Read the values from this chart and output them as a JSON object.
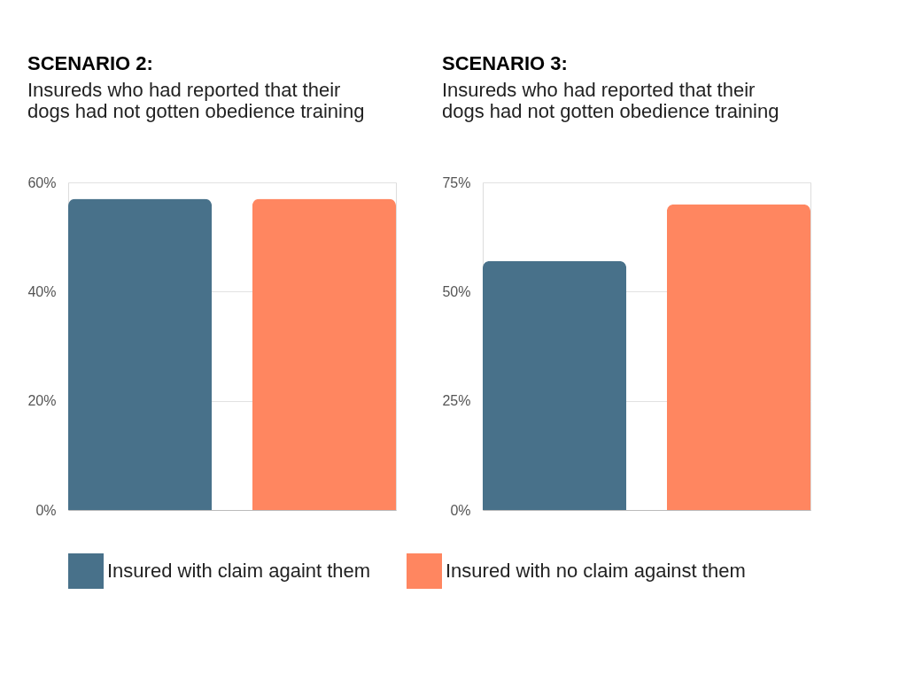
{
  "chart_data": [
    {
      "type": "bar",
      "title": "SCENARIO 2:",
      "subtitle": "Insureds who had reported that  their dogs had not gotten obedience training",
      "categories": [
        null
      ],
      "series": [
        {
          "name": "Insured with claim againt them",
          "color": "#48718a",
          "values": [
            57
          ]
        },
        {
          "name": "Insured with no claim against them",
          "color": "#ff8660",
          "values": [
            57
          ]
        }
      ],
      "ylim": [
        0,
        60
      ],
      "yticks": [
        {
          "value": 0,
          "label": "0%"
        },
        {
          "value": 20,
          "label": "20%"
        },
        {
          "value": 40,
          "label": "40%"
        },
        {
          "value": 60,
          "label": "60%"
        }
      ],
      "grid": "y",
      "legend": "bottom"
    },
    {
      "type": "bar",
      "title": "SCENARIO 3:",
      "subtitle": " Insureds who had reported that  their dogs had not gotten obedience training",
      "categories": [
        null
      ],
      "series": [
        {
          "name": "Insured with claim againt them",
          "color": "#48718a",
          "values": [
            57
          ]
        },
        {
          "name": "Insured with no claim against them",
          "color": "#ff8660",
          "values": [
            70
          ]
        }
      ],
      "ylim": [
        0,
        75
      ],
      "yticks": [
        {
          "value": 0,
          "label": "0%"
        },
        {
          "value": 25,
          "label": "25%"
        },
        {
          "value": 50,
          "label": "50%"
        },
        {
          "value": 75,
          "label": "75%"
        }
      ],
      "grid": "y",
      "legend": "bottom"
    }
  ]
}
